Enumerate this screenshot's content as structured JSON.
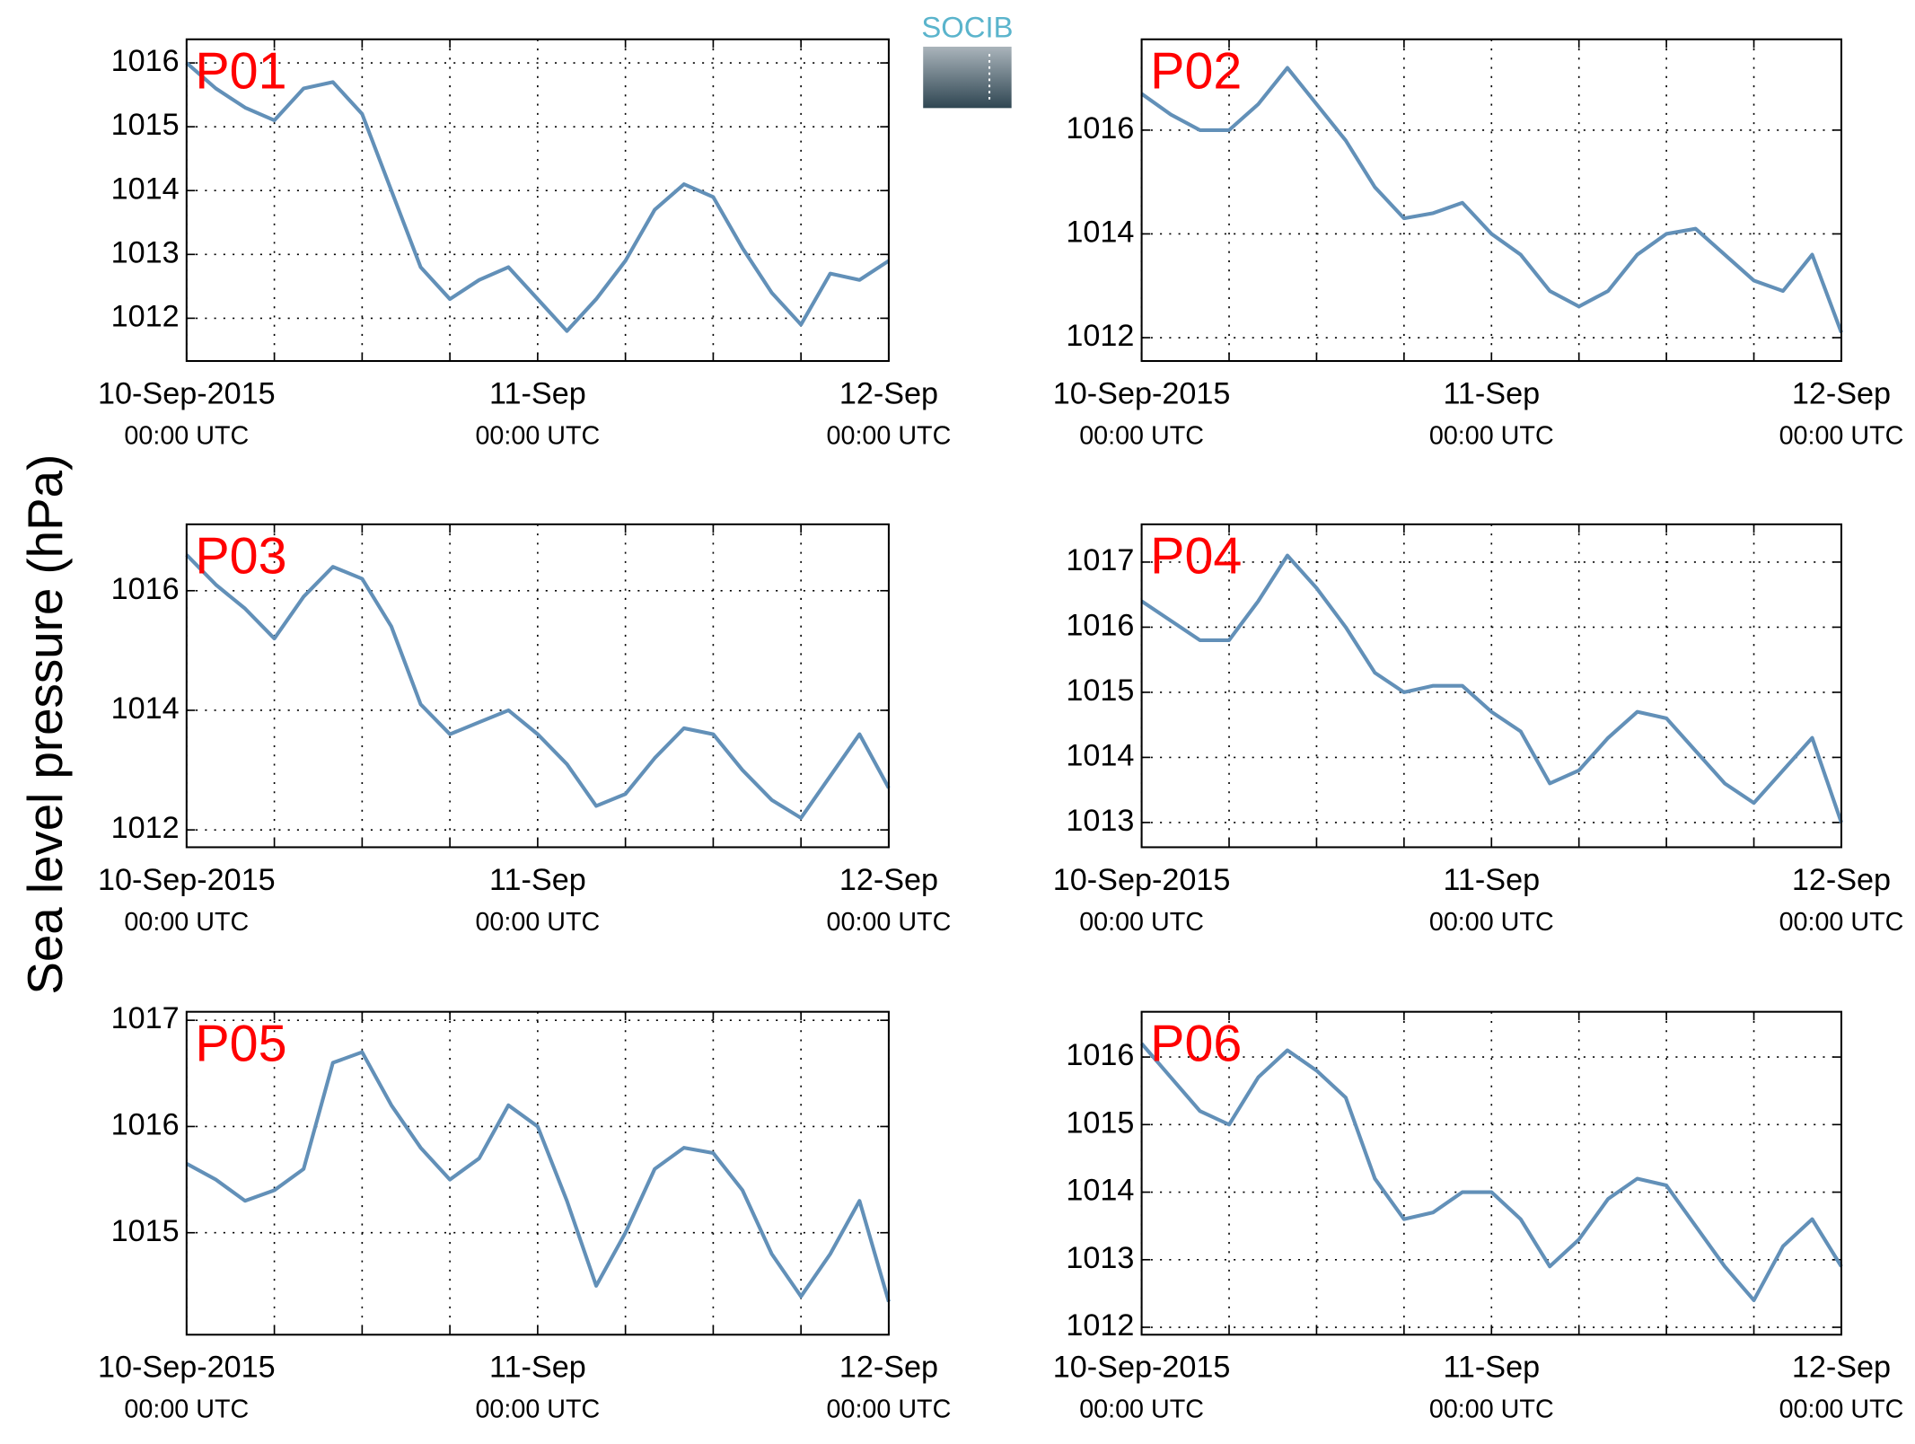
{
  "ylabel": "Sea level pressure (hPa)",
  "logo": "SOCIB",
  "chart_data": [
    {
      "type": "line",
      "title": "P01",
      "x": [
        0,
        2,
        4,
        6,
        8,
        10,
        12,
        14,
        16,
        18,
        20,
        22,
        24,
        26,
        28,
        30,
        32,
        34,
        36,
        38,
        40,
        42,
        44,
        46,
        48
      ],
      "series": [
        {
          "color": "#6290b8",
          "values": [
            1016.0,
            1015.6,
            1015.3,
            1015.1,
            1015.6,
            1015.7,
            1015.2,
            1014.0,
            1012.8,
            1012.3,
            1012.6,
            1012.8,
            1012.3,
            1011.8,
            1012.3,
            1012.9,
            1013.7,
            1014.1,
            1013.9,
            1013.1,
            1012.4,
            1011.9,
            1012.7,
            1012.6,
            1012.9
          ]
        }
      ],
      "xlim": [
        0,
        48
      ],
      "ylim": [
        1011.33,
        1016.37
      ],
      "yticks": [
        1012,
        1013,
        1014,
        1015,
        1016
      ],
      "xticks": [
        {
          "value": 0,
          "label": "10-Sep-2015",
          "sublabel": "00:00 UTC"
        },
        {
          "value": 24,
          "label": "11-Sep",
          "sublabel": "00:00 UTC"
        },
        {
          "value": 48,
          "label": "12-Sep",
          "sublabel": "00:00 UTC"
        }
      ],
      "minor_xticks": [
        6,
        12,
        18,
        30,
        36,
        42
      ],
      "grid": true
    },
    {
      "type": "line",
      "title": "P02",
      "x": [
        0,
        2,
        4,
        6,
        8,
        10,
        12,
        14,
        16,
        18,
        20,
        22,
        24,
        26,
        28,
        30,
        32,
        34,
        36,
        38,
        40,
        42,
        44,
        46,
        48
      ],
      "series": [
        {
          "color": "#6290b8",
          "values": [
            1016.7,
            1016.3,
            1016.0,
            1016.0,
            1016.5,
            1017.2,
            1016.5,
            1015.8,
            1014.9,
            1014.3,
            1014.4,
            1014.6,
            1014.0,
            1013.6,
            1012.9,
            1012.6,
            1012.9,
            1013.6,
            1014.0,
            1014.1,
            1013.6,
            1013.1,
            1012.9,
            1013.6,
            1012.1
          ]
        }
      ],
      "xlim": [
        0,
        48
      ],
      "ylim": [
        1011.55,
        1017.75
      ],
      "yticks": [
        1012,
        1014,
        1016
      ],
      "xticks": [
        {
          "value": 0,
          "label": "10-Sep-2015",
          "sublabel": "00:00 UTC"
        },
        {
          "value": 24,
          "label": "11-Sep",
          "sublabel": "00:00 UTC"
        },
        {
          "value": 48,
          "label": "12-Sep",
          "sublabel": "00:00 UTC"
        }
      ],
      "minor_xticks": [
        6,
        12,
        18,
        30,
        36,
        42
      ],
      "grid": true
    },
    {
      "type": "line",
      "title": "P03",
      "x": [
        0,
        2,
        4,
        6,
        8,
        10,
        12,
        14,
        16,
        18,
        20,
        22,
        24,
        26,
        28,
        30,
        32,
        34,
        36,
        38,
        40,
        42,
        44,
        46,
        48
      ],
      "series": [
        {
          "color": "#6290b8",
          "values": [
            1016.6,
            1016.1,
            1015.7,
            1015.2,
            1015.9,
            1016.4,
            1016.2,
            1015.4,
            1014.1,
            1013.6,
            1013.8,
            1014.0,
            1013.6,
            1013.1,
            1012.4,
            1012.6,
            1013.2,
            1013.7,
            1013.6,
            1013.0,
            1012.5,
            1012.2,
            1012.9,
            1013.6,
            1012.7
          ]
        }
      ],
      "xlim": [
        0,
        48
      ],
      "ylim": [
        1011.71,
        1017.11
      ],
      "yticks": [
        1012,
        1014,
        1016
      ],
      "xticks": [
        {
          "value": 0,
          "label": "10-Sep-2015",
          "sublabel": "00:00 UTC"
        },
        {
          "value": 24,
          "label": "11-Sep",
          "sublabel": "00:00 UTC"
        },
        {
          "value": 48,
          "label": "12-Sep",
          "sublabel": "00:00 UTC"
        }
      ],
      "minor_xticks": [
        6,
        12,
        18,
        30,
        36,
        42
      ],
      "grid": true
    },
    {
      "type": "line",
      "title": "P04",
      "x": [
        0,
        2,
        4,
        6,
        8,
        10,
        12,
        14,
        16,
        18,
        20,
        22,
        24,
        26,
        28,
        30,
        32,
        34,
        36,
        38,
        40,
        42,
        44,
        46,
        48
      ],
      "series": [
        {
          "color": "#6290b8",
          "values": [
            1016.4,
            1016.1,
            1015.8,
            1015.8,
            1016.4,
            1017.1,
            1016.6,
            1016.0,
            1015.3,
            1015.0,
            1015.1,
            1015.1,
            1014.7,
            1014.4,
            1013.6,
            1013.8,
            1014.3,
            1014.7,
            1014.6,
            1014.1,
            1013.6,
            1013.3,
            1013.8,
            1014.3,
            1013.0
          ]
        }
      ],
      "xlim": [
        0,
        48
      ],
      "ylim": [
        1012.62,
        1017.58
      ],
      "yticks": [
        1013,
        1014,
        1015,
        1016,
        1017
      ],
      "xticks": [
        {
          "value": 0,
          "label": "10-Sep-2015",
          "sublabel": "00:00 UTC"
        },
        {
          "value": 24,
          "label": "11-Sep",
          "sublabel": "00:00 UTC"
        },
        {
          "value": 48,
          "label": "12-Sep",
          "sublabel": "00:00 UTC"
        }
      ],
      "minor_xticks": [
        6,
        12,
        18,
        30,
        36,
        42
      ],
      "grid": true
    },
    {
      "type": "line",
      "title": "P05",
      "x": [
        0,
        2,
        4,
        6,
        8,
        10,
        12,
        14,
        16,
        18,
        20,
        22,
        24,
        26,
        28,
        30,
        32,
        34,
        36,
        38,
        40,
        42,
        44,
        46,
        48
      ],
      "series": [
        {
          "color": "#6290b8",
          "values": [
            1015.65,
            1015.5,
            1015.3,
            1015.4,
            1015.6,
            1016.6,
            1016.7,
            1016.2,
            1015.8,
            1015.5,
            1015.7,
            1016.2,
            1016.0,
            1015.3,
            1014.5,
            1015.0,
            1015.6,
            1015.8,
            1015.75,
            1015.4,
            1014.8,
            1014.4,
            1014.8,
            1015.3,
            1014.35
          ]
        }
      ],
      "xlim": [
        0,
        48
      ],
      "ylim": [
        1014.04,
        1017.08
      ],
      "yticks": [
        1015,
        1016,
        1017
      ],
      "xticks": [
        {
          "value": 0,
          "label": "10-Sep-2015",
          "sublabel": "00:00 UTC"
        },
        {
          "value": 24,
          "label": "11-Sep",
          "sublabel": "00:00 UTC"
        },
        {
          "value": 48,
          "label": "12-Sep",
          "sublabel": "00:00 UTC"
        }
      ],
      "minor_xticks": [
        6,
        12,
        18,
        30,
        36,
        42
      ],
      "grid": true
    },
    {
      "type": "line",
      "title": "P06",
      "x": [
        0,
        2,
        4,
        6,
        8,
        10,
        12,
        14,
        16,
        18,
        20,
        22,
        24,
        26,
        28,
        30,
        32,
        34,
        36,
        38,
        40,
        42,
        44,
        46,
        48
      ],
      "series": [
        {
          "color": "#6290b8",
          "values": [
            1016.2,
            1015.7,
            1015.2,
            1015.0,
            1015.7,
            1016.1,
            1015.8,
            1015.4,
            1014.2,
            1013.6,
            1013.7,
            1014.0,
            1014.0,
            1013.6,
            1012.9,
            1013.3,
            1013.9,
            1014.2,
            1014.1,
            1013.5,
            1012.9,
            1012.4,
            1013.2,
            1013.6,
            1012.9
          ]
        }
      ],
      "xlim": [
        0,
        48
      ],
      "ylim": [
        1011.89,
        1016.67
      ],
      "yticks": [
        1012,
        1013,
        1014,
        1015,
        1016
      ],
      "xticks": [
        {
          "value": 0,
          "label": "10-Sep-2015",
          "sublabel": "00:00 UTC"
        },
        {
          "value": 24,
          "label": "11-Sep",
          "sublabel": "00:00 UTC"
        },
        {
          "value": 48,
          "label": "12-Sep",
          "sublabel": "00:00 UTC"
        }
      ],
      "minor_xticks": [
        6,
        12,
        18,
        30,
        36,
        42
      ],
      "grid": true
    }
  ]
}
